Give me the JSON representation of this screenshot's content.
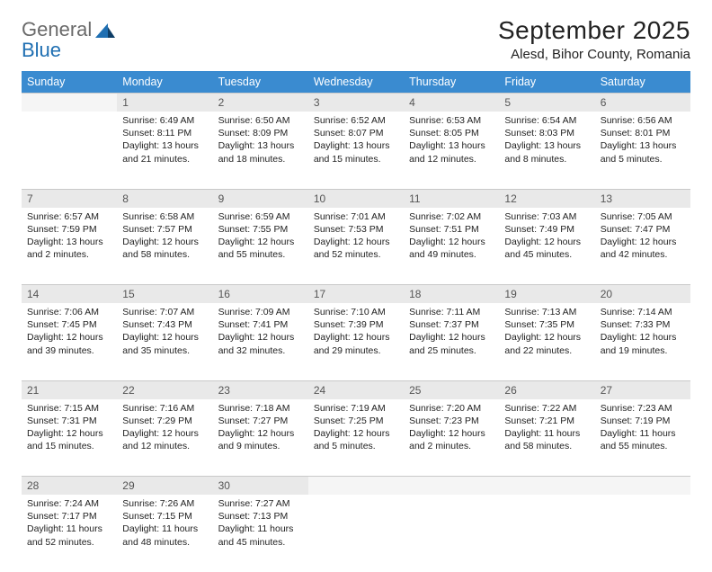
{
  "logo": {
    "word1": "General",
    "word2": "Blue"
  },
  "title": "September 2025",
  "location": "Alesd, Bihor County, Romania",
  "columns": [
    "Sunday",
    "Monday",
    "Tuesday",
    "Wednesday",
    "Thursday",
    "Friday",
    "Saturday"
  ],
  "colors": {
    "header_bg": "#3a8bd0",
    "header_fg": "#ffffff",
    "daynum_bg": "#e9e9e9",
    "daynum_fg": "#555555",
    "logo_gray": "#6a6a6a",
    "logo_blue": "#1f6fb2"
  },
  "weeks": [
    [
      {
        "n": ""
      },
      {
        "n": "1",
        "sr": "6:49 AM",
        "ss": "8:11 PM",
        "dl": "13 hours and 21 minutes."
      },
      {
        "n": "2",
        "sr": "6:50 AM",
        "ss": "8:09 PM",
        "dl": "13 hours and 18 minutes."
      },
      {
        "n": "3",
        "sr": "6:52 AM",
        "ss": "8:07 PM",
        "dl": "13 hours and 15 minutes."
      },
      {
        "n": "4",
        "sr": "6:53 AM",
        "ss": "8:05 PM",
        "dl": "13 hours and 12 minutes."
      },
      {
        "n": "5",
        "sr": "6:54 AM",
        "ss": "8:03 PM",
        "dl": "13 hours and 8 minutes."
      },
      {
        "n": "6",
        "sr": "6:56 AM",
        "ss": "8:01 PM",
        "dl": "13 hours and 5 minutes."
      }
    ],
    [
      {
        "n": "7",
        "sr": "6:57 AM",
        "ss": "7:59 PM",
        "dl": "13 hours and 2 minutes."
      },
      {
        "n": "8",
        "sr": "6:58 AM",
        "ss": "7:57 PM",
        "dl": "12 hours and 58 minutes."
      },
      {
        "n": "9",
        "sr": "6:59 AM",
        "ss": "7:55 PM",
        "dl": "12 hours and 55 minutes."
      },
      {
        "n": "10",
        "sr": "7:01 AM",
        "ss": "7:53 PM",
        "dl": "12 hours and 52 minutes."
      },
      {
        "n": "11",
        "sr": "7:02 AM",
        "ss": "7:51 PM",
        "dl": "12 hours and 49 minutes."
      },
      {
        "n": "12",
        "sr": "7:03 AM",
        "ss": "7:49 PM",
        "dl": "12 hours and 45 minutes."
      },
      {
        "n": "13",
        "sr": "7:05 AM",
        "ss": "7:47 PM",
        "dl": "12 hours and 42 minutes."
      }
    ],
    [
      {
        "n": "14",
        "sr": "7:06 AM",
        "ss": "7:45 PM",
        "dl": "12 hours and 39 minutes."
      },
      {
        "n": "15",
        "sr": "7:07 AM",
        "ss": "7:43 PM",
        "dl": "12 hours and 35 minutes."
      },
      {
        "n": "16",
        "sr": "7:09 AM",
        "ss": "7:41 PM",
        "dl": "12 hours and 32 minutes."
      },
      {
        "n": "17",
        "sr": "7:10 AM",
        "ss": "7:39 PM",
        "dl": "12 hours and 29 minutes."
      },
      {
        "n": "18",
        "sr": "7:11 AM",
        "ss": "7:37 PM",
        "dl": "12 hours and 25 minutes."
      },
      {
        "n": "19",
        "sr": "7:13 AM",
        "ss": "7:35 PM",
        "dl": "12 hours and 22 minutes."
      },
      {
        "n": "20",
        "sr": "7:14 AM",
        "ss": "7:33 PM",
        "dl": "12 hours and 19 minutes."
      }
    ],
    [
      {
        "n": "21",
        "sr": "7:15 AM",
        "ss": "7:31 PM",
        "dl": "12 hours and 15 minutes."
      },
      {
        "n": "22",
        "sr": "7:16 AM",
        "ss": "7:29 PM",
        "dl": "12 hours and 12 minutes."
      },
      {
        "n": "23",
        "sr": "7:18 AM",
        "ss": "7:27 PM",
        "dl": "12 hours and 9 minutes."
      },
      {
        "n": "24",
        "sr": "7:19 AM",
        "ss": "7:25 PM",
        "dl": "12 hours and 5 minutes."
      },
      {
        "n": "25",
        "sr": "7:20 AM",
        "ss": "7:23 PM",
        "dl": "12 hours and 2 minutes."
      },
      {
        "n": "26",
        "sr": "7:22 AM",
        "ss": "7:21 PM",
        "dl": "11 hours and 58 minutes."
      },
      {
        "n": "27",
        "sr": "7:23 AM",
        "ss": "7:19 PM",
        "dl": "11 hours and 55 minutes."
      }
    ],
    [
      {
        "n": "28",
        "sr": "7:24 AM",
        "ss": "7:17 PM",
        "dl": "11 hours and 52 minutes."
      },
      {
        "n": "29",
        "sr": "7:26 AM",
        "ss": "7:15 PM",
        "dl": "11 hours and 48 minutes."
      },
      {
        "n": "30",
        "sr": "7:27 AM",
        "ss": "7:13 PM",
        "dl": "11 hours and 45 minutes."
      },
      {
        "n": ""
      },
      {
        "n": ""
      },
      {
        "n": ""
      },
      {
        "n": ""
      }
    ]
  ],
  "labels": {
    "sunrise": "Sunrise:",
    "sunset": "Sunset:",
    "daylight": "Daylight:"
  }
}
